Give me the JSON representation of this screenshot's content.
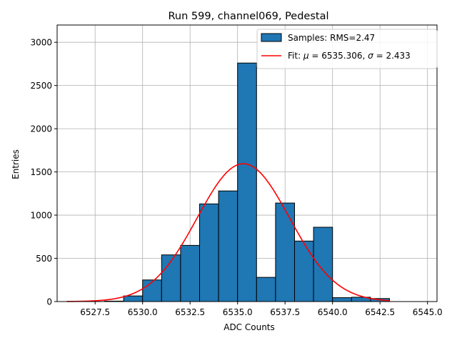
{
  "chart_data": {
    "type": "bar",
    "title": "Run 599, channel069, Pedestal",
    "xlabel": "ADC Counts",
    "ylabel": "Entries",
    "xlim": [
      6525.5,
      6545.5
    ],
    "ylim": [
      0,
      3200
    ],
    "xticks": [
      6527.5,
      6530.0,
      6532.5,
      6535.0,
      6537.5,
      6540.0,
      6542.5,
      6545.0
    ],
    "xtick_labels": [
      "6527.5",
      "6530.0",
      "6532.5",
      "6535.0",
      "6537.5",
      "6540.0",
      "6542.5",
      "6545.0"
    ],
    "yticks": [
      0,
      500,
      1000,
      1500,
      2000,
      2500,
      3000
    ],
    "ytick_labels": [
      "0",
      "500",
      "1000",
      "1500",
      "2000",
      "2500",
      "3000"
    ],
    "grid": true,
    "legend_position": "top-right",
    "bar_color": "#1f77b4",
    "fit_color": "#ff0000",
    "bins": [
      {
        "left": 6528.0,
        "right": 6529.0,
        "value": 5
      },
      {
        "left": 6529.0,
        "right": 6530.0,
        "value": 65
      },
      {
        "left": 6530.0,
        "right": 6531.0,
        "value": 250
      },
      {
        "left": 6531.0,
        "right": 6532.0,
        "value": 540
      },
      {
        "left": 6532.0,
        "right": 6533.0,
        "value": 650
      },
      {
        "left": 6533.0,
        "right": 6534.0,
        "value": 1130
      },
      {
        "left": 6534.0,
        "right": 6535.0,
        "value": 1280
      },
      {
        "left": 6535.0,
        "right": 6536.0,
        "value": 2760
      },
      {
        "left": 6536.0,
        "right": 6537.0,
        "value": 280
      },
      {
        "left": 6537.0,
        "right": 6538.0,
        "value": 1140
      },
      {
        "left": 6538.0,
        "right": 6539.0,
        "value": 700
      },
      {
        "left": 6539.0,
        "right": 6540.0,
        "value": 860
      },
      {
        "left": 6540.0,
        "right": 6541.0,
        "value": 45
      },
      {
        "left": 6541.0,
        "right": 6542.0,
        "value": 50
      },
      {
        "left": 6542.0,
        "right": 6543.0,
        "value": 35
      }
    ],
    "fit": {
      "mu": 6535.306,
      "sigma": 2.433,
      "amplitude": 1595,
      "x_range": [
        6526.0,
        6543.0
      ]
    },
    "legend": {
      "samples_label": "Samples: RMS=2.47",
      "fit_prefix": "Fit: ",
      "mu_symbol": "μ",
      "mu_text": " = 6535.306, ",
      "sigma_symbol": "σ",
      "sigma_text": " = 2.433"
    }
  }
}
